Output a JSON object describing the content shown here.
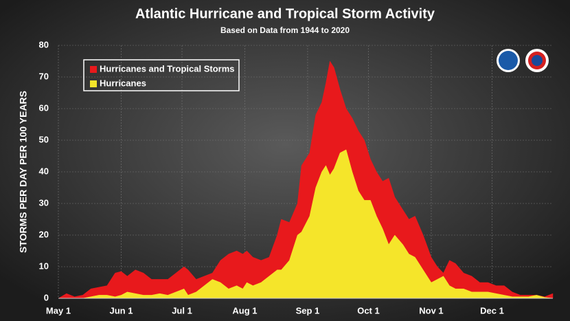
{
  "chart_data": {
    "type": "area",
    "title": "Atlantic Hurricane and Tropical Storm Activity",
    "subtitle": "Based on Data from 1944 to 2020",
    "y_label": "STORMS PER DAY PER 100 YEARS",
    "x": [
      0,
      4,
      8,
      12,
      16,
      20,
      24,
      28,
      31,
      34,
      38,
      42,
      46,
      50,
      54,
      58,
      62,
      64,
      68,
      72,
      76,
      80,
      84,
      88,
      91,
      93,
      96,
      100,
      104,
      108,
      110,
      114,
      118,
      120,
      124,
      127,
      130,
      132,
      134,
      136,
      139,
      142,
      145,
      148,
      151,
      154,
      157,
      160,
      163,
      166,
      170,
      173,
      176,
      180,
      184,
      187,
      190,
      193,
      196,
      200,
      204,
      208,
      212,
      216,
      220,
      224,
      228,
      232,
      236,
      240,
      244
    ],
    "series": [
      {
        "name": "Hurricanes and Tropical Storms",
        "color": "#e8191c",
        "values": [
          0,
          1.5,
          0.5,
          1,
          3,
          3.5,
          4,
          8,
          8.5,
          7,
          9,
          8,
          6,
          6,
          6,
          8,
          10,
          9,
          6,
          7,
          8,
          12,
          14,
          15,
          14,
          15,
          13,
          12,
          13,
          20,
          25,
          24,
          30,
          42,
          46,
          58,
          62,
          68,
          75,
          73,
          66,
          60,
          57,
          53,
          50,
          44,
          40,
          37,
          38,
          32,
          28,
          25,
          26,
          20,
          13,
          10,
          8,
          12,
          11,
          8,
          7,
          5,
          5,
          4,
          4,
          2,
          1,
          1,
          1,
          0.5,
          1.5
        ]
      },
      {
        "name": "Hurricanes",
        "color": "#f5e52a",
        "values": [
          0,
          0,
          0,
          0,
          0.5,
          1,
          1,
          0.5,
          1,
          2,
          1.5,
          1,
          1,
          1.5,
          1,
          2,
          3,
          1,
          2,
          4,
          6,
          5,
          3,
          4,
          3,
          5,
          4,
          5,
          7,
          9,
          9,
          12,
          20,
          21,
          26,
          35,
          40,
          42,
          39,
          41,
          46,
          47,
          40,
          34,
          31,
          31,
          26,
          22,
          17,
          20,
          17,
          14,
          13,
          9,
          5,
          6,
          7,
          4,
          3,
          3,
          2,
          2,
          2,
          1.5,
          1,
          0.5,
          0.5,
          0.5,
          1,
          0.3,
          0
        ]
      }
    ],
    "xlim": [
      0,
      244
    ],
    "xticks": [
      {
        "value": 0,
        "label": "May 1"
      },
      {
        "value": 31,
        "label": "Jun 1"
      },
      {
        "value": 61,
        "label": "Jul 1"
      },
      {
        "value": 92,
        "label": "Aug 1"
      },
      {
        "value": 123,
        "label": "Sep 1"
      },
      {
        "value": 153,
        "label": "Oct 1"
      },
      {
        "value": 184,
        "label": "Nov 1"
      },
      {
        "value": 214,
        "label": "Dec 1"
      }
    ],
    "ylim": [
      0,
      80
    ],
    "yticks": [
      0,
      10,
      20,
      30,
      40,
      50,
      60,
      70,
      80
    ],
    "grid": true
  }
}
